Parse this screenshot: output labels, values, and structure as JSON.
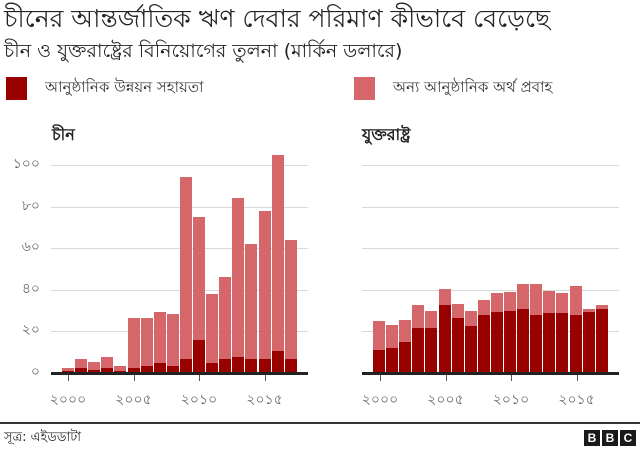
{
  "header": {
    "title": "চীনের আন্তর্জাতিক ঋণ দেবার পরিমাণ কীভাবে বেড়েছে",
    "subtitle": "চীন ও যুক্তরাষ্ট্রের বিনিয়োগের তুলনা (মার্কিন ডলারে)"
  },
  "legend": [
    {
      "label": "আনুষ্ঠানিক উন্নয়ন সহায়তা",
      "color": "#990000"
    },
    {
      "label": "অন্য আনুষ্ঠানিক অর্থ প্রবাহ",
      "color": "#D5676A"
    }
  ],
  "panels": [
    {
      "title": "চীন"
    },
    {
      "title": "যুক্তরাষ্ট্র"
    }
  ],
  "axes": {
    "y_ticks": [
      {
        "value": 100,
        "label": "১০০"
      },
      {
        "value": 80,
        "label": "৮০"
      },
      {
        "value": 60,
        "label": "৬০"
      },
      {
        "value": 40,
        "label": "৪০"
      },
      {
        "value": 20,
        "label": "২০"
      },
      {
        "value": 0,
        "label": "০"
      }
    ],
    "x_ticks": [
      {
        "value": 2000,
        "label": "২০০০"
      },
      {
        "value": 2005,
        "label": "২০০৫"
      },
      {
        "value": 2010,
        "label": "২০১০"
      },
      {
        "value": 2015,
        "label": "২০১৫"
      }
    ]
  },
  "footer": {
    "source": "সূত্র: এইডডাটা",
    "logo": [
      "B",
      "B",
      "C"
    ]
  },
  "chart_data": [
    {
      "type": "bar",
      "stacked": true,
      "title": "চীন",
      "xlabel": "",
      "ylabel": "",
      "ylim": [
        0,
        105
      ],
      "grid": true,
      "categories": [
        2000,
        2001,
        2002,
        2003,
        2004,
        2005,
        2006,
        2007,
        2008,
        2009,
        2010,
        2011,
        2012,
        2013,
        2014,
        2015,
        2016,
        2017
      ],
      "series": [
        {
          "name": "আনুষ্ঠানিক উন্নয়ন সহায়তা",
          "color": "#990000",
          "values": [
            1,
            2.5,
            1.5,
            2.5,
            1,
            2.5,
            3.5,
            5,
            3.5,
            6.5,
            16,
            5,
            6.5,
            7.5,
            6.5,
            6.5,
            10.5,
            6.5
          ]
        },
        {
          "name": "অন্য আনুষ্ঠানিক অর্থ প্রবাহ",
          "color": "#D5676A",
          "values": [
            1.5,
            4,
            4,
            5,
            2.5,
            24,
            23,
            24.5,
            25,
            87.5,
            59,
            33,
            39.5,
            76.5,
            55.5,
            71.5,
            94.5,
            57.5
          ]
        }
      ],
      "totals": [
        2.5,
        6.5,
        5.5,
        7.5,
        3.5,
        26.5,
        26.5,
        29.5,
        28.5,
        94,
        75,
        38,
        46,
        84,
        62,
        78,
        105,
        64
      ]
    },
    {
      "type": "bar",
      "stacked": true,
      "title": "যুক্তরাষ্ট্র",
      "xlabel": "",
      "ylabel": "",
      "ylim": [
        0,
        105
      ],
      "grid": true,
      "categories": [
        2000,
        2001,
        2002,
        2003,
        2004,
        2005,
        2006,
        2007,
        2008,
        2009,
        2010,
        2011,
        2012,
        2013,
        2014,
        2015,
        2016,
        2017
      ],
      "series": [
        {
          "name": "আনুষ্ঠানিক উন্নয়ন সহায়তা",
          "color": "#990000",
          "values": [
            11,
            12,
            15,
            21.5,
            21.5,
            32.5,
            26.5,
            22.5,
            28,
            29.5,
            30,
            31,
            28,
            29,
            29,
            28,
            29.5,
            31
          ]
        },
        {
          "name": "অন্য আনুষ্ঠানিক অর্থ প্রবাহ",
          "color": "#D5676A",
          "values": [
            14,
            11,
            10.5,
            11,
            8.5,
            8,
            6.5,
            7.5,
            7,
            9,
            9,
            12,
            15,
            10.5,
            9.5,
            14,
            1.5,
            1.5
          ]
        }
      ],
      "totals": [
        25,
        23,
        25.5,
        32.5,
        30,
        40.5,
        33,
        30,
        35,
        38.5,
        39,
        43,
        43,
        39.5,
        38.5,
        42,
        31,
        32.5
      ]
    }
  ]
}
